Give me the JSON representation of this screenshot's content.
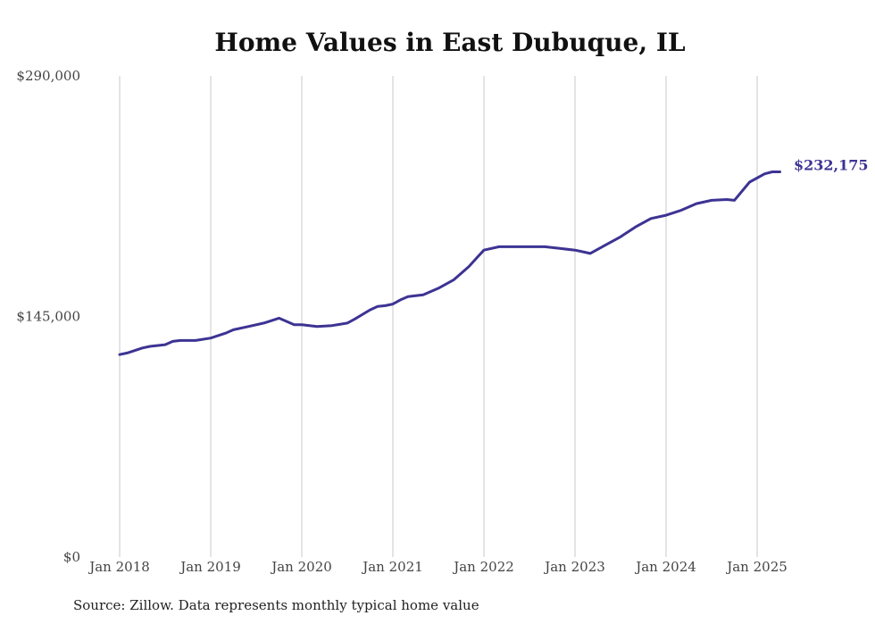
{
  "chart_data": {
    "type": "line",
    "title": "Home Values in East Dubuque, IL",
    "xlabel": "",
    "ylabel": "",
    "ylim": [
      0,
      290000
    ],
    "yticks": [
      {
        "value": 0,
        "label": "$0"
      },
      {
        "value": 145000,
        "label": "$145,000"
      },
      {
        "value": 290000,
        "label": "$290,000"
      }
    ],
    "xticks": [
      "Jan 2018",
      "Jan 2019",
      "Jan 2020",
      "Jan 2021",
      "Jan 2022",
      "Jan 2023",
      "Jan 2024",
      "Jan 2025"
    ],
    "grid": "vertical",
    "series": [
      {
        "color": "#3d3393",
        "x": [
          "2018-01",
          "2018-02",
          "2018-04",
          "2018-05",
          "2018-07",
          "2018-08",
          "2018-09",
          "2018-11",
          "2019-01",
          "2019-03",
          "2019-04",
          "2019-06",
          "2019-08",
          "2019-10",
          "2019-12",
          "2020-01",
          "2020-03",
          "2020-05",
          "2020-07",
          "2020-08",
          "2020-10",
          "2020-11",
          "2020-12",
          "2021-01",
          "2021-02",
          "2021-03",
          "2021-05",
          "2021-07",
          "2021-09",
          "2021-11",
          "2021-12",
          "2022-01",
          "2022-03",
          "2022-05",
          "2022-07",
          "2022-09",
          "2022-11",
          "2023-01",
          "2023-02",
          "2023-03",
          "2023-05",
          "2023-07",
          "2023-09",
          "2023-11",
          "2024-01",
          "2024-03",
          "2024-05",
          "2024-07",
          "2024-09",
          "2024-10",
          "2024-12",
          "2025-02",
          "2025-03",
          "2025-04"
        ],
        "values": [
          122000,
          123000,
          126000,
          127000,
          128000,
          130000,
          130500,
          130500,
          132000,
          135000,
          137000,
          139000,
          141000,
          144000,
          140000,
          140000,
          139000,
          139500,
          141000,
          143500,
          149000,
          151000,
          151500,
          152500,
          155000,
          157000,
          158000,
          162000,
          167000,
          175000,
          180000,
          185000,
          187000,
          187000,
          187000,
          187000,
          186000,
          185000,
          184000,
          183000,
          188000,
          193000,
          199000,
          204000,
          206000,
          209000,
          213000,
          215000,
          215500,
          215000,
          226000,
          231000,
          232175,
          232175
        ]
      }
    ],
    "end_label": "$232,175",
    "source_note": "Source: Zillow. Data represents monthly typical home value"
  }
}
